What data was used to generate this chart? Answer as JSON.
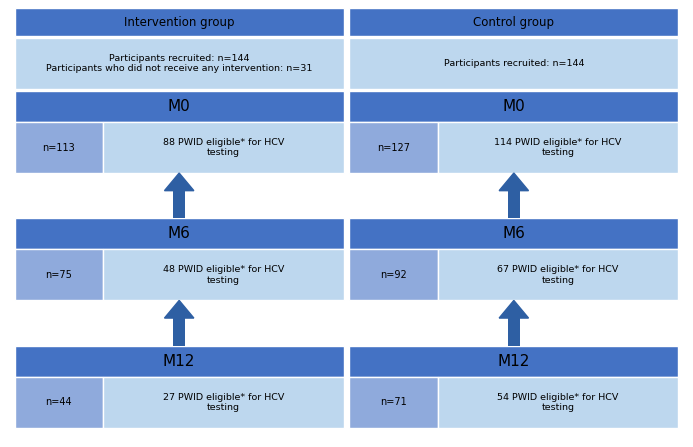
{
  "col_headers": [
    "Intervention group",
    "Control group"
  ],
  "medium_blue": "#4472C4",
  "light_blue": "#8FAADC",
  "lighter_blue": "#BDD7EE",
  "arrow_color": "#2E5FA3",
  "intervention_recruited_text": "Participants recruited: n=144\nParticipants who did not receive any intervention: n=31",
  "control_recruited_text": "Participants recruited: n=144",
  "rows": [
    {
      "label": "M0",
      "intervention_n": "n=113",
      "intervention_eligible": "88 PWID eligible* for HCV\ntesting",
      "control_n": "n=127",
      "control_eligible": "114 PWID eligible* for HCV\ntesting"
    },
    {
      "label": "M6",
      "intervention_n": "n=75",
      "intervention_eligible": "48 PWID eligible* for HCV\ntesting",
      "control_n": "n=92",
      "control_eligible": "67 PWID eligible* for HCV\ntesting"
    },
    {
      "label": "M12",
      "intervention_n": "n=44",
      "intervention_eligible": "27 PWID eligible* for HCV\ntesting",
      "control_n": "n=71",
      "control_eligible": "54 PWID eligible* for HCV\ntesting"
    }
  ],
  "background": "white"
}
